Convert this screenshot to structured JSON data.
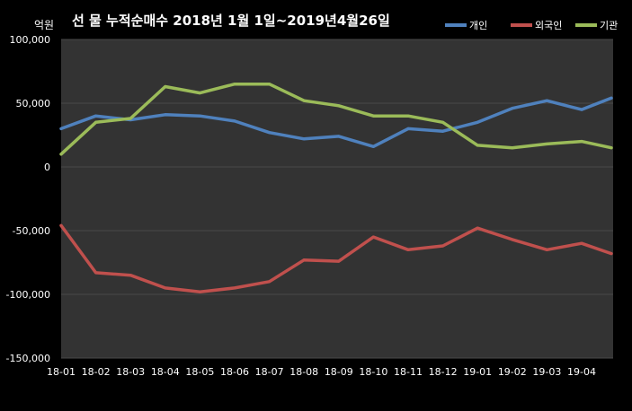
{
  "chart_data": {
    "type": "line",
    "title": "선 물 누적순매수 2018년 1월 1일~2019년4월26일",
    "unit_label": "억원",
    "ylim": [
      -150000,
      100000
    ],
    "y_ticks": [
      100000,
      50000,
      0,
      -50000,
      -100000,
      -150000
    ],
    "y_tick_labels": [
      "100,000",
      "50,000",
      "0",
      "-50,000",
      "-100,000",
      "-150,000"
    ],
    "x_tick_labels": [
      "18-01",
      "18-02",
      "18-03",
      "18-04",
      "18-05",
      "18-06",
      "18-07",
      "18-08",
      "18-09",
      "18-10",
      "18-11",
      "18-12",
      "19-01",
      "19-02",
      "19-03",
      "19-04"
    ],
    "x": [
      "2018-01",
      "2018-02",
      "2018-03",
      "2018-04",
      "2018-05",
      "2018-06",
      "2018-07",
      "2018-08",
      "2018-09",
      "2018-10",
      "2018-11",
      "2018-12",
      "2019-01",
      "2019-02",
      "2019-03",
      "2019-04",
      "2019-04-26"
    ],
    "grid": "horizontal",
    "background": "#333333",
    "legend_position": "top-right",
    "series": [
      {
        "name": "개인",
        "color": "#4f81bd",
        "values": [
          30000,
          40000,
          37000,
          41000,
          40000,
          36000,
          27000,
          22000,
          24000,
          16000,
          30000,
          28000,
          35000,
          46000,
          52000,
          45000,
          54000
        ]
      },
      {
        "name": "외국인",
        "color": "#c0504d",
        "values": [
          -46000,
          -83000,
          -85000,
          -95000,
          -98000,
          -95000,
          -90000,
          -73000,
          -74000,
          -55000,
          -65000,
          -62000,
          -48000,
          -57000,
          -65000,
          -60000,
          -68000
        ]
      },
      {
        "name": "기관",
        "color": "#9bbb59",
        "values": [
          10000,
          35000,
          38000,
          63000,
          58000,
          65000,
          65000,
          52000,
          48000,
          40000,
          40000,
          35000,
          17000,
          15000,
          18000,
          20000,
          15000
        ]
      }
    ]
  }
}
